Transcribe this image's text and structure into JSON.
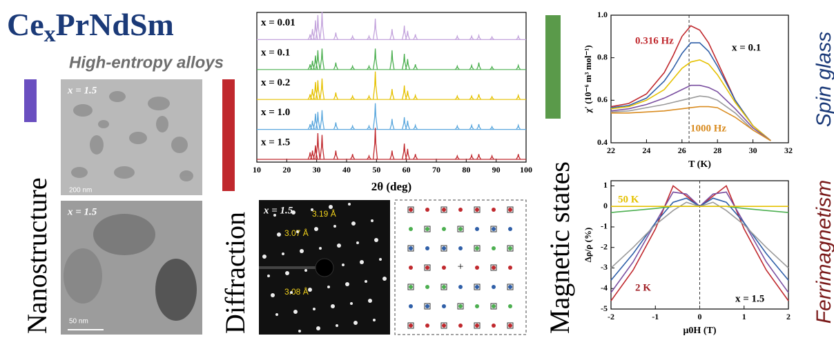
{
  "header": {
    "title_base": "Ce",
    "title_subscript": "x",
    "title_rest": "PrNdSm",
    "subtitle": "High-entropy alloys"
  },
  "sections": [
    "Nanostructure",
    "Diffraction",
    "Magnetic states"
  ],
  "side_labels": [
    "Spin glass",
    "Ferrimagnetism"
  ],
  "tem_images": [
    {
      "label": "x = 1.5",
      "scale_bar": "200 nm"
    },
    {
      "label": "x = 1.5",
      "scale_bar": "50 nm"
    }
  ],
  "saed": {
    "label": "x = 1.5",
    "spacings": [
      "3.19 Å",
      "3.07 Å",
      "3.08 Å"
    ]
  },
  "chart_data": [
    {
      "type": "xrd",
      "xlabel": "2θ (deg)",
      "xlim": [
        10,
        100
      ],
      "xticks": [
        10,
        20,
        30,
        40,
        50,
        60,
        70,
        80,
        90,
        100
      ],
      "x": [
        27.8,
        28.6,
        29.6,
        30.4,
        31.8,
        36.4,
        42,
        47.5,
        49.6,
        55.2,
        59.3,
        60.4,
        63,
        77,
        81.8,
        84.2,
        88.6,
        97.4
      ],
      "series": [
        {
          "name": "x = 0.01",
          "color": "#c3a3dc",
          "values": [
            15,
            30,
            55,
            70,
            80,
            20,
            10,
            10,
            60,
            30,
            40,
            25,
            15,
            10,
            10,
            12,
            8,
            10
          ]
        },
        {
          "name": "x = 0.1",
          "color": "#4caf50",
          "values": [
            15,
            25,
            40,
            55,
            60,
            20,
            10,
            10,
            60,
            55,
            45,
            30,
            15,
            10,
            12,
            20,
            8,
            12
          ]
        },
        {
          "name": "x = 0.2",
          "color": "#e5c100",
          "values": [
            15,
            30,
            50,
            55,
            60,
            20,
            10,
            10,
            80,
            30,
            40,
            25,
            12,
            10,
            10,
            15,
            8,
            12
          ]
        },
        {
          "name": "x = 1.0",
          "color": "#5aa7dd",
          "values": [
            15,
            25,
            45,
            50,
            55,
            20,
            10,
            10,
            75,
            30,
            35,
            25,
            12,
            10,
            12,
            15,
            8,
            12
          ]
        },
        {
          "name": "x = 1.5",
          "color": "#c0282d",
          "values": [
            20,
            25,
            40,
            75,
            70,
            25,
            15,
            10,
            90,
            25,
            45,
            30,
            15,
            10,
            12,
            15,
            10,
            15
          ]
        }
      ]
    },
    {
      "type": "line",
      "xlabel": "T (K)",
      "ylabel": "χ′ (10⁻⁶ m³ mol⁻¹)",
      "xlim": [
        22,
        32
      ],
      "xticks": [
        22,
        24,
        26,
        28,
        30,
        32
      ],
      "ylim": [
        0.4,
        1.0
      ],
      "yticks": [
        0.4,
        0.6,
        0.8,
        {
          "value": 1,
          "label": "1.0"
        }
      ],
      "reference_x": 26.4,
      "annotations": [
        {
          "text": "0.316 Hz",
          "color": "#c0282d"
        },
        {
          "text": "1000 Hz",
          "color": "#d98b1f"
        },
        {
          "text": "x = 0.1",
          "color": "#000000"
        }
      ],
      "x": [
        22,
        23,
        24,
        25,
        25.5,
        26,
        26.5,
        27,
        27.5,
        28,
        29,
        30,
        31
      ],
      "series": [
        {
          "color": "#c0282d",
          "values": [
            0.57,
            0.585,
            0.63,
            0.73,
            0.81,
            0.9,
            0.95,
            0.93,
            0.87,
            0.78,
            0.6,
            0.48,
            0.41
          ]
        },
        {
          "color": "#2f5fa8",
          "values": [
            0.565,
            0.575,
            0.61,
            0.69,
            0.75,
            0.82,
            0.87,
            0.87,
            0.83,
            0.76,
            0.6,
            0.48,
            0.41
          ]
        },
        {
          "color": "#e5c100",
          "values": [
            0.56,
            0.57,
            0.6,
            0.65,
            0.7,
            0.75,
            0.78,
            0.79,
            0.77,
            0.72,
            0.59,
            0.48,
            0.41
          ]
        },
        {
          "color": "#7a4fa0",
          "values": [
            0.55,
            0.56,
            0.58,
            0.61,
            0.63,
            0.65,
            0.67,
            0.67,
            0.66,
            0.64,
            0.56,
            0.47,
            0.41
          ]
        },
        {
          "color": "#9a9a9a",
          "values": [
            0.545,
            0.55,
            0.565,
            0.58,
            0.59,
            0.6,
            0.61,
            0.62,
            0.615,
            0.6,
            0.54,
            0.46,
            0.41
          ]
        },
        {
          "color": "#d98b1f",
          "values": [
            0.54,
            0.54,
            0.545,
            0.55,
            0.555,
            0.56,
            0.565,
            0.57,
            0.57,
            0.565,
            0.52,
            0.46,
            0.41
          ]
        }
      ]
    },
    {
      "type": "line",
      "xlabel": "μ0H (T)",
      "ylabel": "Δρ/ρ (%)",
      "xlim": [
        -2,
        2
      ],
      "xticks": [
        -2,
        -1,
        0,
        1,
        2
      ],
      "ylim": [
        -5,
        1.25
      ],
      "yticks": [
        -5,
        -4,
        -3,
        -2,
        -1,
        0,
        1
      ],
      "reference_x": 0,
      "annotations": [
        {
          "text": "50 K",
          "color": "#e5c100"
        },
        {
          "text": "2 K",
          "color": "#a01e24"
        },
        {
          "text": "x = 1.5",
          "color": "#000000"
        }
      ],
      "x": [
        -2,
        -1.5,
        -1,
        -0.6,
        -0.3,
        0,
        0.3,
        0.6,
        1,
        1.5,
        2
      ],
      "series": [
        {
          "color": "#c0282d",
          "values": [
            -4.6,
            -3.1,
            -1.1,
            1.0,
            0.5,
            0,
            0.5,
            1.0,
            -1.1,
            -3.1,
            -4.6
          ]
        },
        {
          "color": "#7a4fa0",
          "values": [
            -4.2,
            -2.7,
            -0.8,
            0.7,
            0.6,
            0,
            0.6,
            0.7,
            -0.8,
            -2.7,
            -4.2
          ]
        },
        {
          "color": "#2f5fa8",
          "values": [
            -3.6,
            -2.3,
            -0.8,
            0.2,
            0.4,
            0,
            0.4,
            0.2,
            -0.8,
            -2.3,
            -3.6
          ]
        },
        {
          "color": "#9a9a9a",
          "values": [
            -3,
            -2,
            -0.9,
            -0.2,
            0.2,
            0,
            0.2,
            -0.2,
            -0.9,
            -2,
            -3
          ]
        },
        {
          "color": "#4caf50",
          "values": [
            -0.3,
            -0.2,
            -0.1,
            0,
            0,
            0,
            0,
            0,
            -0.1,
            -0.2,
            -0.3
          ]
        },
        {
          "color": "#e5c100",
          "values": [
            0,
            0,
            0,
            0,
            0,
            0,
            0,
            0,
            0,
            0,
            0
          ]
        }
      ]
    }
  ]
}
